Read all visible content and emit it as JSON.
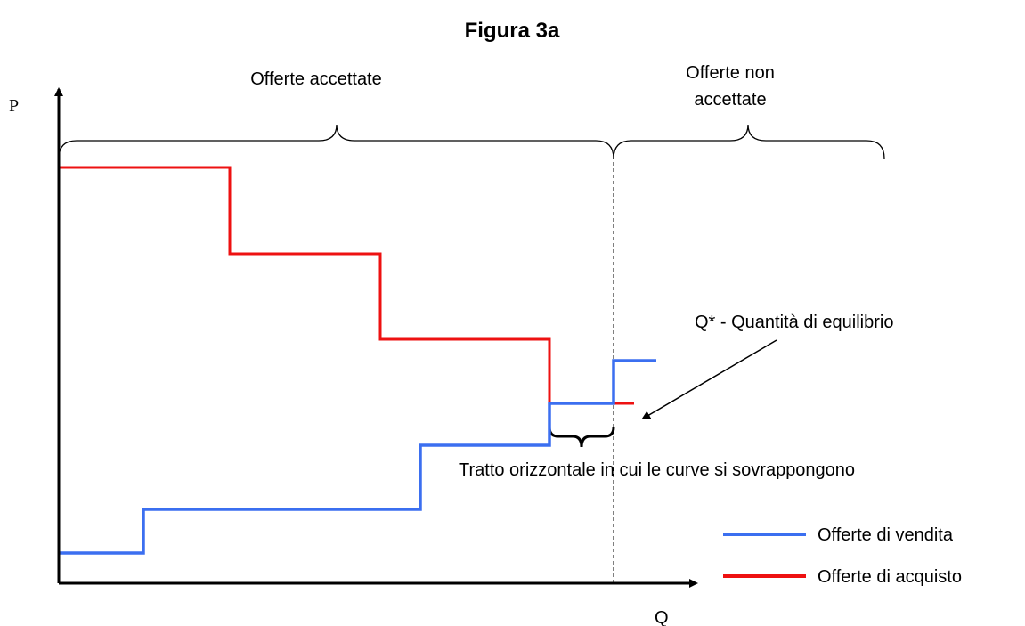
{
  "title": "Figura 3a",
  "axes": {
    "y_label": "P",
    "x_label": "Q"
  },
  "regions": {
    "accepted": "Offerte accettate",
    "not_accepted": [
      "Offerte non",
      "accettate"
    ]
  },
  "annotations": {
    "equilibrium": "Q* - Quantità di equilibrio",
    "overlap": "Tratto orizzontale in cui le curve si sovrappongono"
  },
  "legend": [
    {
      "name": "Offerte di vendita",
      "color": "#3b6ff0"
    },
    {
      "name": "Offerte di acquisto",
      "color": "#ee1111"
    }
  ]
}
